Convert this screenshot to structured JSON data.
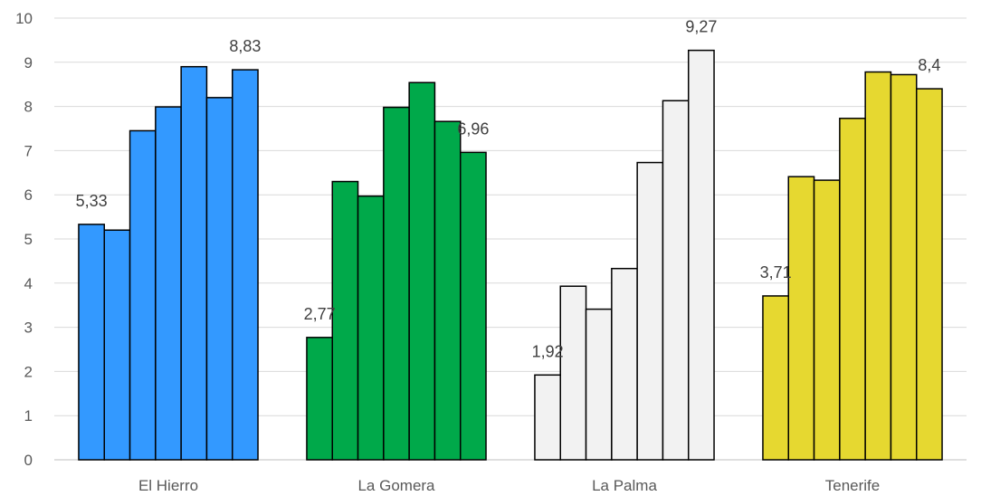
{
  "chart_data": {
    "type": "bar",
    "ylim": [
      0,
      10
    ],
    "y_ticks": [
      "0",
      "1",
      "2",
      "3",
      "4",
      "5",
      "6",
      "7",
      "8",
      "9",
      "10"
    ],
    "grid": true,
    "groups": [
      {
        "name": "El Hierro",
        "color": "#3399ff",
        "values": [
          5.33,
          5.2,
          7.45,
          7.99,
          8.9,
          8.2,
          8.83
        ],
        "labels": {
          "0": "5,33",
          "6": "8,83"
        }
      },
      {
        "name": "La Gomera",
        "color": "#00a94a",
        "values": [
          2.77,
          6.3,
          5.97,
          7.98,
          8.54,
          7.66,
          6.96
        ],
        "labels": {
          "0": "2,77",
          "6": "6,96"
        }
      },
      {
        "name": "La Palma",
        "color": "#f2f2f2",
        "values": [
          1.92,
          3.93,
          3.41,
          4.33,
          6.73,
          8.13,
          9.27
        ],
        "labels": {
          "0": "1,92",
          "6": "9,27"
        }
      },
      {
        "name": "Tenerife",
        "color": "#e6d830",
        "values": [
          3.71,
          6.41,
          6.33,
          7.73,
          8.78,
          8.72,
          8.4
        ],
        "labels": {
          "0": "3,71",
          "6": "8,4"
        }
      }
    ]
  }
}
